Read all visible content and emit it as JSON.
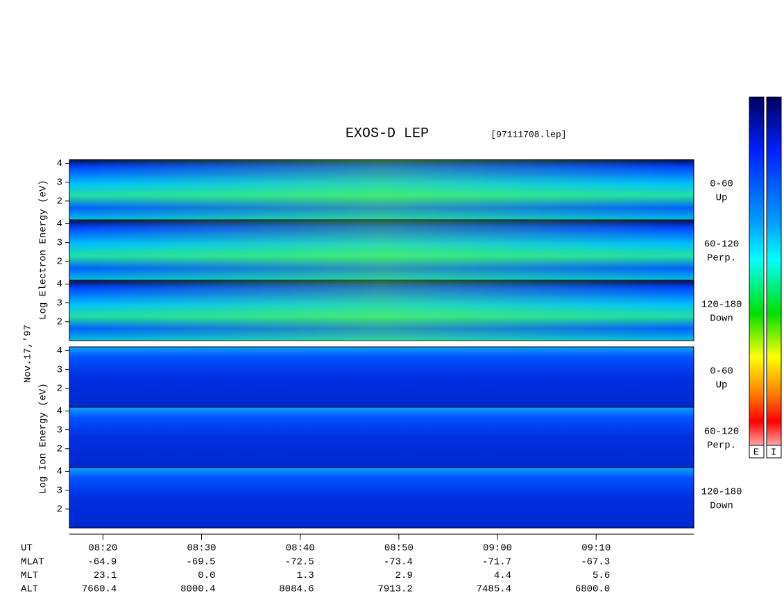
{
  "title": "EXOS-D LEP",
  "file": "[97111708.lep]",
  "date": "Nov.17,'97",
  "electron": {
    "ylabel": "Log Electron Energy (eV)",
    "panels": [
      {
        "range": "0-60",
        "direction": "Up"
      },
      {
        "range": "60-120",
        "direction": "Perp."
      },
      {
        "range": "120-180",
        "direction": "Down"
      }
    ]
  },
  "ion": {
    "ylabel": "Log Ion Energy (eV)",
    "panels": [
      {
        "range": "0-60",
        "direction": "Up"
      },
      {
        "range": "60-120",
        "direction": "Perp."
      },
      {
        "range": "120-180",
        "direction": "Down"
      }
    ]
  },
  "axis": {
    "ylim": [
      1,
      4.2
    ],
    "yticks": [
      2,
      3,
      4
    ],
    "xlim": [
      496.6,
      559.9
    ],
    "xticks": [
      {
        "value": 500,
        "label": "08:20"
      },
      {
        "value": 510,
        "label": "08:30"
      },
      {
        "value": 520,
        "label": "08:40"
      },
      {
        "value": 530,
        "label": "08:50"
      },
      {
        "value": 540,
        "label": "09:00"
      },
      {
        "value": 550,
        "label": "09:10"
      }
    ]
  },
  "table": {
    "ut_label": "UT",
    "rows": [
      {
        "label": "MLAT",
        "values": [
          "-64.9",
          "-69.5",
          "-72.5",
          "-73.4",
          "-71.7",
          "-67.3"
        ]
      },
      {
        "label": "MLT",
        "values": [
          "23.1",
          "0.0",
          "1.3",
          "2.9",
          "4.4",
          "5.6"
        ]
      },
      {
        "label": "ALT",
        "values": [
          "7660.4",
          "8000.4",
          "8084.6",
          "7913.2",
          "7485.4",
          "6800.0"
        ]
      }
    ]
  },
  "colorbar": {
    "labels": [
      "E",
      "I"
    ]
  }
}
